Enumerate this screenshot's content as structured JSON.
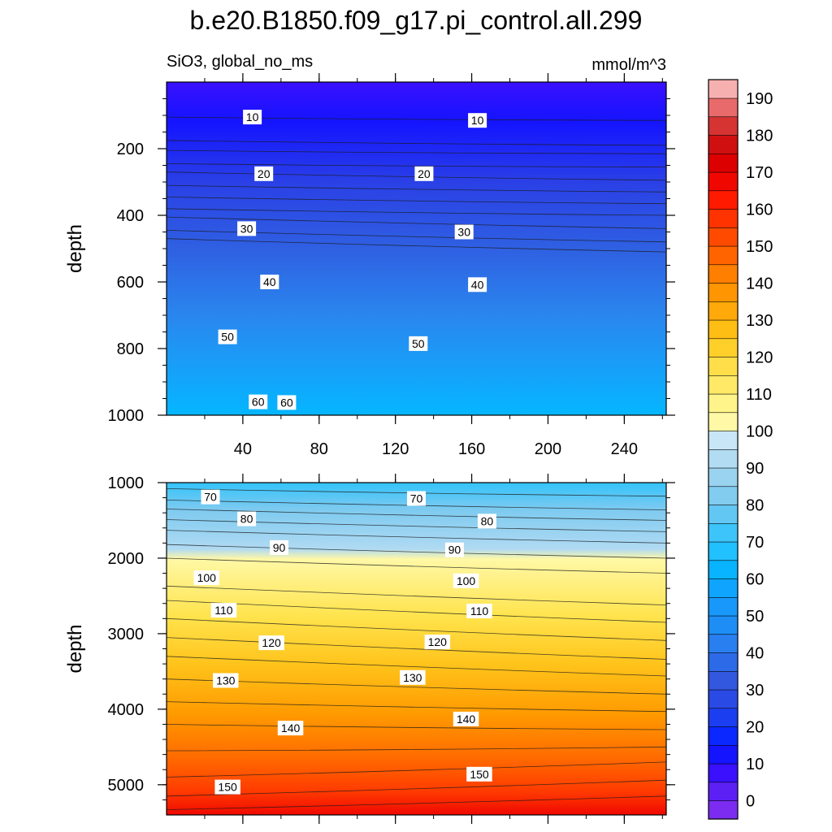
{
  "title": "b.e20.B1850.f09_g17.pi_control.all.299",
  "subtitle_left": "SiO3, global_no_ms",
  "subtitle_right": "mmol/m^3",
  "chart_data": [
    {
      "type": "contour",
      "panel": "upper",
      "ylabel": "depth",
      "xlim": [
        0,
        262
      ],
      "ylim": [
        1000,
        0
      ],
      "x_ticks": [
        40,
        80,
        120,
        160,
        200,
        240
      ],
      "y_ticks": [
        200,
        400,
        600,
        800,
        1000
      ],
      "contour_levels": [
        10,
        15,
        20,
        25,
        30,
        35,
        40,
        45,
        50,
        55,
        60
      ],
      "contour_depth_left": [
        105,
        175,
        205,
        245,
        270,
        310,
        345,
        380,
        405,
        445,
        470
      ],
      "contour_depth_right": [
        115,
        190,
        215,
        255,
        295,
        330,
        365,
        400,
        440,
        480,
        510
      ],
      "contour_labels": [
        {
          "text": "10",
          "x": 45,
          "y": 105
        },
        {
          "text": "10",
          "x": 163,
          "y": 115
        },
        {
          "text": "20",
          "x": 51,
          "y": 275
        },
        {
          "text": "20",
          "x": 135,
          "y": 275
        },
        {
          "text": "30",
          "x": 42,
          "y": 440
        },
        {
          "text": "30",
          "x": 156,
          "y": 450
        },
        {
          "text": "40",
          "x": 54,
          "y": 600
        },
        {
          "text": "40",
          "x": 163,
          "y": 608
        },
        {
          "text": "50",
          "x": 32,
          "y": 765
        },
        {
          "text": "50",
          "x": 132,
          "y": 785
        },
        {
          "text": "60",
          "x": 48,
          "y": 960
        },
        {
          "text": "60",
          "x": 63,
          "y": 962
        }
      ]
    },
    {
      "type": "contour",
      "panel": "lower",
      "ylabel": "depth",
      "xlim": [
        0,
        262
      ],
      "ylim": [
        5400,
        1000
      ],
      "x_ticks": [
        40,
        80,
        120,
        160,
        200,
        240
      ],
      "y_ticks": [
        1000,
        2000,
        3000,
        4000,
        5000
      ],
      "contour_levels": [
        65,
        70,
        75,
        80,
        85,
        90,
        95,
        100,
        105,
        110,
        115,
        120,
        125,
        130,
        135,
        140,
        145,
        150,
        155
      ],
      "contour_depth_left": [
        1080,
        1230,
        1350,
        1490,
        1630,
        1820,
        2000,
        2370,
        2560,
        2800,
        3050,
        3300,
        3600,
        3900,
        4200,
        4550,
        4900,
        5150,
        5330
      ],
      "contour_depth_right": [
        1180,
        1360,
        1500,
        1650,
        1800,
        2000,
        2200,
        2620,
        2850,
        3090,
        3340,
        3560,
        3800,
        4030,
        4270,
        4500,
        4700,
        4940,
        5150
      ],
      "contour_labels": [
        {
          "text": "70",
          "x": 23,
          "y": 1190
        },
        {
          "text": "70",
          "x": 131,
          "y": 1210
        },
        {
          "text": "80",
          "x": 42,
          "y": 1480
        },
        {
          "text": "80",
          "x": 168,
          "y": 1510
        },
        {
          "text": "90",
          "x": 59,
          "y": 1860
        },
        {
          "text": "90",
          "x": 151,
          "y": 1890
        },
        {
          "text": "100",
          "x": 21,
          "y": 2260
        },
        {
          "text": "100",
          "x": 157,
          "y": 2300
        },
        {
          "text": "110",
          "x": 30,
          "y": 2690
        },
        {
          "text": "110",
          "x": 164,
          "y": 2700
        },
        {
          "text": "120",
          "x": 55,
          "y": 3120
        },
        {
          "text": "120",
          "x": 142,
          "y": 3110
        },
        {
          "text": "130",
          "x": 31,
          "y": 3620
        },
        {
          "text": "130",
          "x": 129,
          "y": 3580
        },
        {
          "text": "140",
          "x": 65,
          "y": 4250
        },
        {
          "text": "140",
          "x": 157,
          "y": 4130
        },
        {
          "text": "150",
          "x": 32,
          "y": 5030
        },
        {
          "text": "150",
          "x": 164,
          "y": 4860
        }
      ]
    }
  ],
  "colorbar": {
    "labels": [
      "0",
      "10",
      "20",
      "30",
      "40",
      "50",
      "60",
      "70",
      "80",
      "90",
      "100",
      "110",
      "120",
      "130",
      "140",
      "150",
      "160",
      "170",
      "180",
      "190"
    ],
    "colors_bottom_to_top": [
      "#7b2cf0",
      "#5c20f5",
      "#3a10ff",
      "#1414ff",
      "#0a28ff",
      "#1a3ef0",
      "#2a4ae6",
      "#3358e0",
      "#2d6ae8",
      "#2a7ff0",
      "#1e8ef5",
      "#1898fa",
      "#0fa5ff",
      "#08b3ff",
      "#21c0ff",
      "#3dc5fa",
      "#63c7f3",
      "#82ccf0",
      "#9ad3f0",
      "#b2dcf2",
      "#c8e6f5",
      "#fff8a6",
      "#fff48a",
      "#ffe966",
      "#ffde4a",
      "#ffcf2a",
      "#ffbe14",
      "#ffa90a",
      "#ff9500",
      "#ff7f00",
      "#ff6400",
      "#ff4a00",
      "#ff3300",
      "#ff1a00",
      "#f00800",
      "#dd0000",
      "#d01010",
      "#d63333",
      "#e86a6a",
      "#f7b0b0"
    ]
  }
}
